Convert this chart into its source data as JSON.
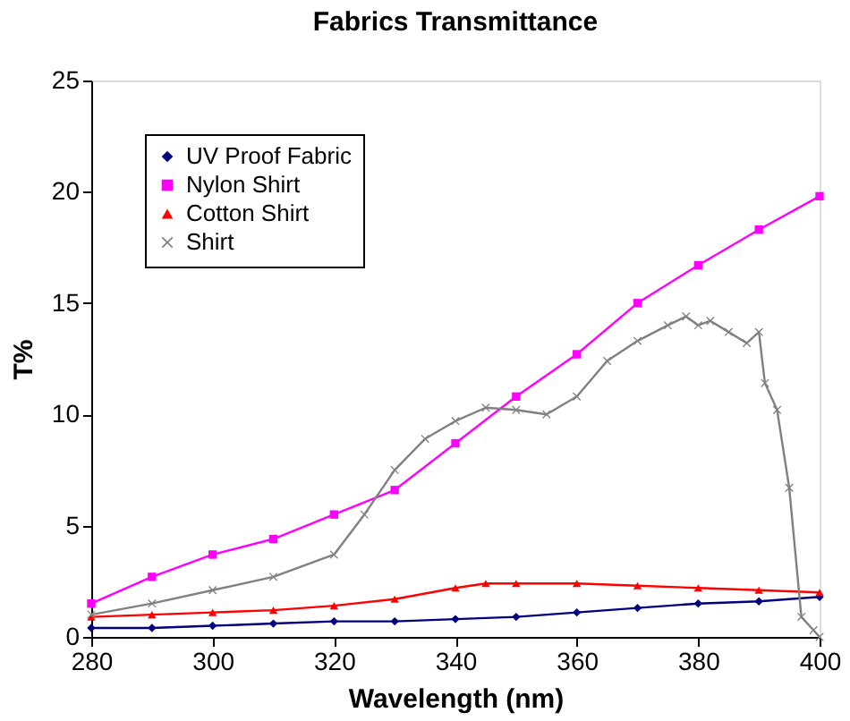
{
  "chart_data": {
    "type": "line",
    "title": "Fabrics Transmittance",
    "xlabel": "Wavelength (nm)",
    "ylabel": "T%",
    "xlim": [
      280,
      400
    ],
    "xticks": [
      280,
      300,
      320,
      340,
      360,
      380,
      400
    ],
    "ylim": [
      0,
      25
    ],
    "yticks": [
      0,
      5,
      10,
      15,
      20,
      25
    ],
    "grid": false,
    "legend": "top left",
    "line_style": "solid",
    "series": [
      {
        "name": "UV Proof Fabric",
        "color": "#000080",
        "marker": "diamond",
        "x": [
          280,
          290,
          300,
          310,
          320,
          330,
          340,
          350,
          360,
          370,
          380,
          390,
          400
        ],
        "values": [
          0.4,
          0.4,
          0.5,
          0.6,
          0.7,
          0.7,
          0.8,
          0.9,
          1.1,
          1.3,
          1.5,
          1.6,
          1.8
        ]
      },
      {
        "name": "Nylon Shirt",
        "color": "#ff00ff",
        "marker": "square",
        "x": [
          280,
          290,
          300,
          310,
          320,
          330,
          340,
          350,
          360,
          370,
          380,
          390,
          400
        ],
        "values": [
          1.5,
          2.7,
          3.7,
          4.4,
          5.5,
          6.6,
          8.7,
          10.8,
          12.7,
          15.0,
          16.7,
          18.3,
          19.8
        ]
      },
      {
        "name": "Cotton Shirt",
        "color": "#ff0000",
        "marker": "triangle",
        "x": [
          280,
          290,
          300,
          310,
          320,
          330,
          340,
          345,
          350,
          360,
          370,
          380,
          390,
          400
        ],
        "values": [
          0.9,
          1.0,
          1.1,
          1.2,
          1.4,
          1.7,
          2.2,
          2.4,
          2.4,
          2.4,
          2.3,
          2.2,
          2.1,
          2.0
        ]
      },
      {
        "name": "Shirt",
        "color": "#808080",
        "marker": "cross",
        "x": [
          280,
          290,
          300,
          310,
          320,
          325,
          330,
          335,
          340,
          345,
          350,
          355,
          360,
          365,
          370,
          375,
          378,
          380,
          382,
          385,
          388,
          390,
          391,
          393,
          395,
          397,
          399,
          400
        ],
        "values": [
          1.0,
          1.5,
          2.1,
          2.7,
          3.7,
          5.5,
          7.5,
          8.9,
          9.7,
          10.3,
          10.2,
          10.0,
          10.8,
          12.4,
          13.3,
          14.0,
          14.4,
          14.0,
          14.2,
          13.7,
          13.2,
          13.7,
          11.4,
          10.2,
          6.7,
          0.9,
          0.3,
          0.0
        ]
      }
    ]
  }
}
